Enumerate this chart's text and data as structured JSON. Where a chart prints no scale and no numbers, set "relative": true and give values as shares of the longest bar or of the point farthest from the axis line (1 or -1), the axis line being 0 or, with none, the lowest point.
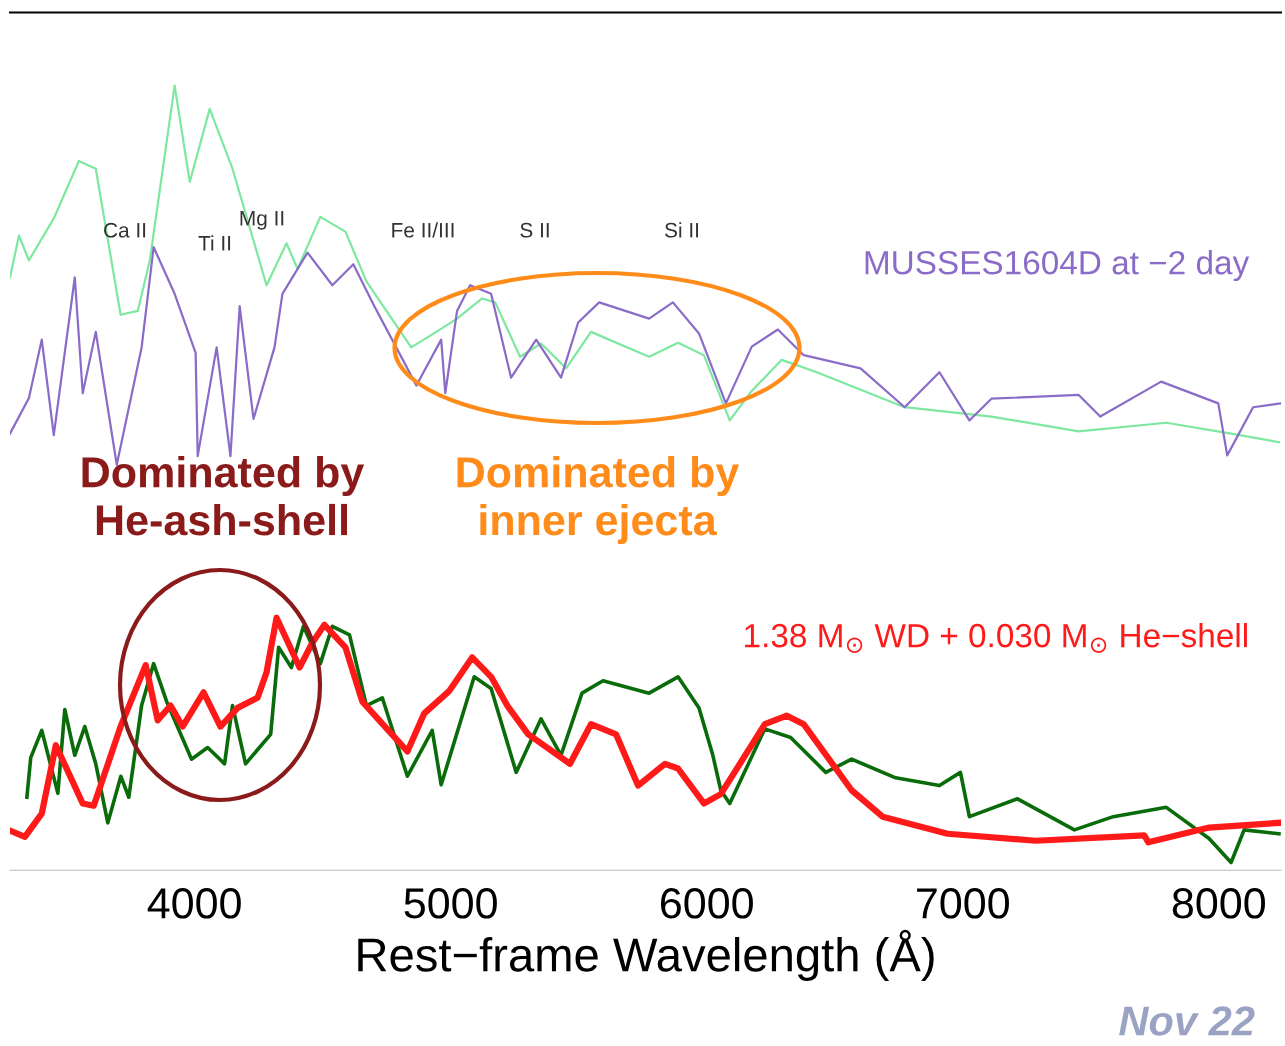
{
  "chart_data": {
    "type": "line",
    "relative": true,
    "xlim": [
      3279,
      8243
    ],
    "xlabel": "Rest−frame Wavelength (Å)",
    "xticks": [
      4000,
      5000,
      6000,
      7000,
      8000
    ],
    "grid": false,
    "legend": false,
    "marker": "none",
    "line_style": "solid",
    "series": [
      {
        "color": "#7ee8a0",
        "x": [
          3279,
          3314,
          3353,
          3450,
          3548,
          3614,
          3711,
          3778,
          3825,
          3922,
          3981,
          4059,
          4148,
          4281,
          4359,
          4402,
          4491,
          4589,
          4671,
          4846,
          4944,
          5025,
          5123,
          5174,
          5271,
          5353,
          5451,
          5548,
          5775,
          5888,
          5989,
          6090,
          6176,
          6293,
          6430,
          6773,
          7112,
          7452,
          7795,
          8048,
          8235
        ],
        "values": [
          0.753,
          0.807,
          0.775,
          0.829,
          0.903,
          0.893,
          0.705,
          0.71,
          0.775,
          1.0,
          0.876,
          0.97,
          0.893,
          0.743,
          0.797,
          0.764,
          0.831,
          0.812,
          0.748,
          0.663,
          0.683,
          0.7,
          0.726,
          0.721,
          0.651,
          0.668,
          0.636,
          0.683,
          0.651,
          0.669,
          0.653,
          0.569,
          0.607,
          0.647,
          0.631,
          0.586,
          0.574,
          0.555,
          0.566,
          0.552,
          0.541
        ]
      },
      {
        "name": "MUSSES1604D at −2 day",
        "color": "#8a6cc8",
        "x": [
          3279,
          3353,
          3403,
          3450,
          3532,
          3563,
          3614,
          3696,
          3793,
          3840,
          3922,
          4004,
          4012,
          4086,
          4140,
          4176,
          4230,
          4312,
          4343,
          4441,
          4538,
          4620,
          4702,
          4815,
          4866,
          4963,
          4979,
          5025,
          5076,
          5158,
          5236,
          5334,
          5431,
          5498,
          5580,
          5775,
          5868,
          5970,
          6075,
          6176,
          6278,
          6379,
          6601,
          6773,
          6909,
          7026,
          7112,
          7452,
          7537,
          7775,
          7998,
          8033,
          8134,
          8243
        ],
        "values": [
          0.552,
          0.598,
          0.673,
          0.55,
          0.753,
          0.604,
          0.683,
          0.512,
          0.663,
          0.792,
          0.732,
          0.656,
          0.523,
          0.663,
          0.523,
          0.716,
          0.571,
          0.663,
          0.732,
          0.785,
          0.743,
          0.77,
          0.716,
          0.646,
          0.614,
          0.673,
          0.604,
          0.71,
          0.743,
          0.732,
          0.624,
          0.673,
          0.624,
          0.695,
          0.721,
          0.7,
          0.721,
          0.681,
          0.591,
          0.664,
          0.686,
          0.653,
          0.636,
          0.586,
          0.631,
          0.569,
          0.597,
          0.602,
          0.574,
          0.619,
          0.591,
          0.524,
          0.586,
          0.591
        ]
      },
      {
        "color": "#0a6b0a",
        "x": [
          3345,
          3360,
          3403,
          3466,
          3493,
          3532,
          3571,
          3614,
          3661,
          3712,
          3743,
          3793,
          3840,
          3891,
          3988,
          4051,
          4117,
          4148,
          4199,
          4297,
          4328,
          4378,
          4425,
          4491,
          4538,
          4605,
          4671,
          4733,
          4831,
          4928,
          4963,
          5092,
          5158,
          5256,
          5353,
          5431,
          5513,
          5595,
          5775,
          5888,
          5970,
          6024,
          6055,
          6090,
          6227,
          6328,
          6465,
          6566,
          6738,
          6909,
          6991,
          7026,
          7214,
          7436,
          7588,
          7795,
          7962,
          8048,
          8099,
          8235
        ],
        "values": [
          0.084,
          0.135,
          0.17,
          0.089,
          0.197,
          0.138,
          0.175,
          0.127,
          0.051,
          0.111,
          0.084,
          0.202,
          0.256,
          0.207,
          0.133,
          0.148,
          0.127,
          0.202,
          0.127,
          0.165,
          0.277,
          0.251,
          0.304,
          0.256,
          0.304,
          0.293,
          0.202,
          0.212,
          0.111,
          0.17,
          0.1,
          0.239,
          0.224,
          0.116,
          0.185,
          0.138,
          0.218,
          0.234,
          0.218,
          0.239,
          0.199,
          0.138,
          0.093,
          0.076,
          0.172,
          0.161,
          0.116,
          0.133,
          0.109,
          0.099,
          0.116,
          0.059,
          0.082,
          0.042,
          0.059,
          0.071,
          0.031,
          0.0,
          0.042,
          0.037
        ]
      },
      {
        "name": "1.38 M$_{⊙}$ WD + 0.030 M$_{⊙}$ He−shell",
        "color": "#ff1a1a",
        "x": [
          3279,
          3337,
          3403,
          3458,
          3563,
          3606,
          3711,
          3809,
          3856,
          3906,
          3953,
          4035,
          4101,
          4168,
          4246,
          4281,
          4320,
          4410,
          4460,
          4507,
          4589,
          4655,
          4831,
          4897,
          4995,
          5084,
          5158,
          5221,
          5303,
          5466,
          5548,
          5646,
          5732,
          5837,
          5888,
          5989,
          6055,
          6227,
          6313,
          6379,
          6566,
          6687,
          6941,
          7284,
          7709,
          7725,
          7962,
          8235
        ],
        "values": [
          0.041,
          0.033,
          0.063,
          0.151,
          0.076,
          0.073,
          0.175,
          0.254,
          0.183,
          0.202,
          0.175,
          0.219,
          0.175,
          0.199,
          0.212,
          0.245,
          0.315,
          0.251,
          0.283,
          0.306,
          0.277,
          0.207,
          0.143,
          0.192,
          0.221,
          0.264,
          0.239,
          0.202,
          0.165,
          0.127,
          0.178,
          0.165,
          0.099,
          0.127,
          0.121,
          0.076,
          0.088,
          0.178,
          0.189,
          0.178,
          0.093,
          0.059,
          0.037,
          0.028,
          0.035,
          0.026,
          0.045,
          0.051
        ]
      }
    ],
    "annotations": [
      "Ca II",
      "Ti II",
      "Mg II",
      "Fe II/III",
      "S II",
      "Si II",
      "Dominated by\nHe-ash-shell",
      "Dominated by\ninner ejecta",
      "Nov 22"
    ]
  }
}
